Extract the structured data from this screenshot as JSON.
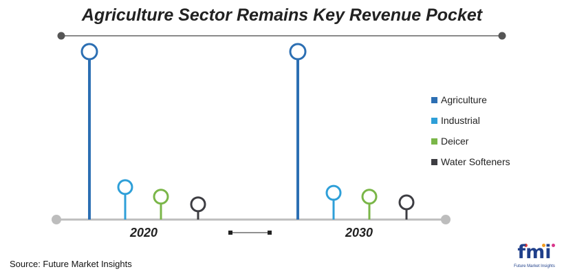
{
  "chart_data": {
    "type": "lollipop",
    "title": "Agriculture Sector Remains Key Revenue Pocket",
    "groups": [
      "2020",
      "2030"
    ],
    "series": [
      {
        "name": "Agriculture",
        "color": "#2c6fb3",
        "values": [
          88,
          88
        ]
      },
      {
        "name": "Industrial",
        "color": "#2e9fd8",
        "values": [
          17,
          14
        ]
      },
      {
        "name": "Deicer",
        "color": "#7ab648",
        "values": [
          12,
          12
        ]
      },
      {
        "name": "Water Softeners",
        "color": "#3d3d42",
        "values": [
          8,
          9
        ]
      }
    ],
    "ylim": [
      0,
      100
    ],
    "legend_position": "right",
    "grid": false
  },
  "source_text": "Source: Future Market Insights",
  "logo": {
    "letters": "fmi",
    "subtitle": "Future Market Insights"
  }
}
